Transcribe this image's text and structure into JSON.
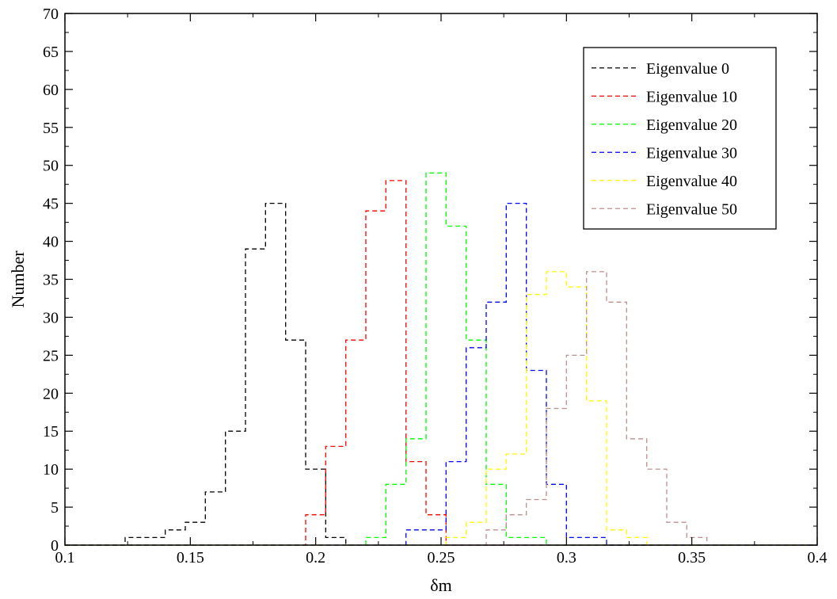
{
  "chart_data": {
    "type": "line",
    "step": true,
    "xlabel": "δm",
    "ylabel": "Number",
    "xlim": [
      0.1,
      0.4
    ],
    "ylim": [
      0,
      70
    ],
    "xticks": [
      0.1,
      0.15,
      0.2,
      0.25,
      0.3,
      0.35,
      0.4
    ],
    "xtick_labels": [
      "0.1",
      "0.15",
      "0.2",
      "0.25",
      "0.3",
      "0.35",
      "0.4"
    ],
    "yticks": [
      0,
      5,
      10,
      15,
      20,
      25,
      30,
      35,
      40,
      45,
      50,
      55,
      60,
      65,
      70
    ],
    "ytick_labels": [
      "0",
      "5",
      "10",
      "15",
      "20",
      "25",
      "30",
      "35",
      "40",
      "45",
      "50",
      "55",
      "60",
      "65",
      "70"
    ],
    "grid": false,
    "legend_position": "top-right",
    "line_style": "dashed",
    "series": [
      {
        "name": "Eigenvalue 0",
        "color": "#000000",
        "x": [
          0.1,
          0.124,
          0.132,
          0.14,
          0.148,
          0.156,
          0.164,
          0.172,
          0.18,
          0.188,
          0.196,
          0.204,
          0.212,
          0.4
        ],
        "values": [
          0,
          1,
          1,
          2,
          3,
          7,
          15,
          39,
          45,
          27,
          10,
          1,
          0,
          0
        ]
      },
      {
        "name": "Eigenvalue 10",
        "color": "#ff0000",
        "x": [
          0.1,
          0.196,
          0.204,
          0.212,
          0.22,
          0.228,
          0.236,
          0.244,
          0.252,
          0.4
        ],
        "values": [
          0,
          4,
          13,
          27,
          44,
          48,
          11,
          4,
          0,
          0
        ]
      },
      {
        "name": "Eigenvalue 20",
        "color": "#00ff00",
        "x": [
          0.1,
          0.22,
          0.228,
          0.236,
          0.244,
          0.252,
          0.26,
          0.268,
          0.276,
          0.284,
          0.292,
          0.4
        ],
        "values": [
          0,
          1,
          8,
          14,
          49,
          42,
          27,
          8,
          1,
          1,
          0,
          0
        ]
      },
      {
        "name": "Eigenvalue 30",
        "color": "#0000ff",
        "x": [
          0.1,
          0.236,
          0.244,
          0.252,
          0.26,
          0.268,
          0.276,
          0.284,
          0.292,
          0.3,
          0.308,
          0.316,
          0.4
        ],
        "values": [
          0,
          2,
          2,
          11,
          26,
          32,
          45,
          23,
          8,
          1,
          1,
          0,
          0
        ]
      },
      {
        "name": "Eigenvalue 40",
        "color": "#ffff00",
        "x": [
          0.1,
          0.252,
          0.26,
          0.268,
          0.276,
          0.284,
          0.292,
          0.3,
          0.308,
          0.316,
          0.324,
          0.332,
          0.4
        ],
        "values": [
          0,
          1,
          3,
          10,
          12,
          33,
          36,
          34,
          19,
          2,
          1,
          0,
          0
        ]
      },
      {
        "name": "Eigenvalue 50",
        "color": "#bc8f8f",
        "x": [
          0.1,
          0.268,
          0.276,
          0.284,
          0.292,
          0.3,
          0.308,
          0.316,
          0.324,
          0.332,
          0.34,
          0.348,
          0.356,
          0.4
        ],
        "values": [
          0,
          2,
          4,
          6,
          18,
          25,
          36,
          32,
          14,
          10,
          3,
          1,
          0,
          0
        ]
      }
    ]
  }
}
